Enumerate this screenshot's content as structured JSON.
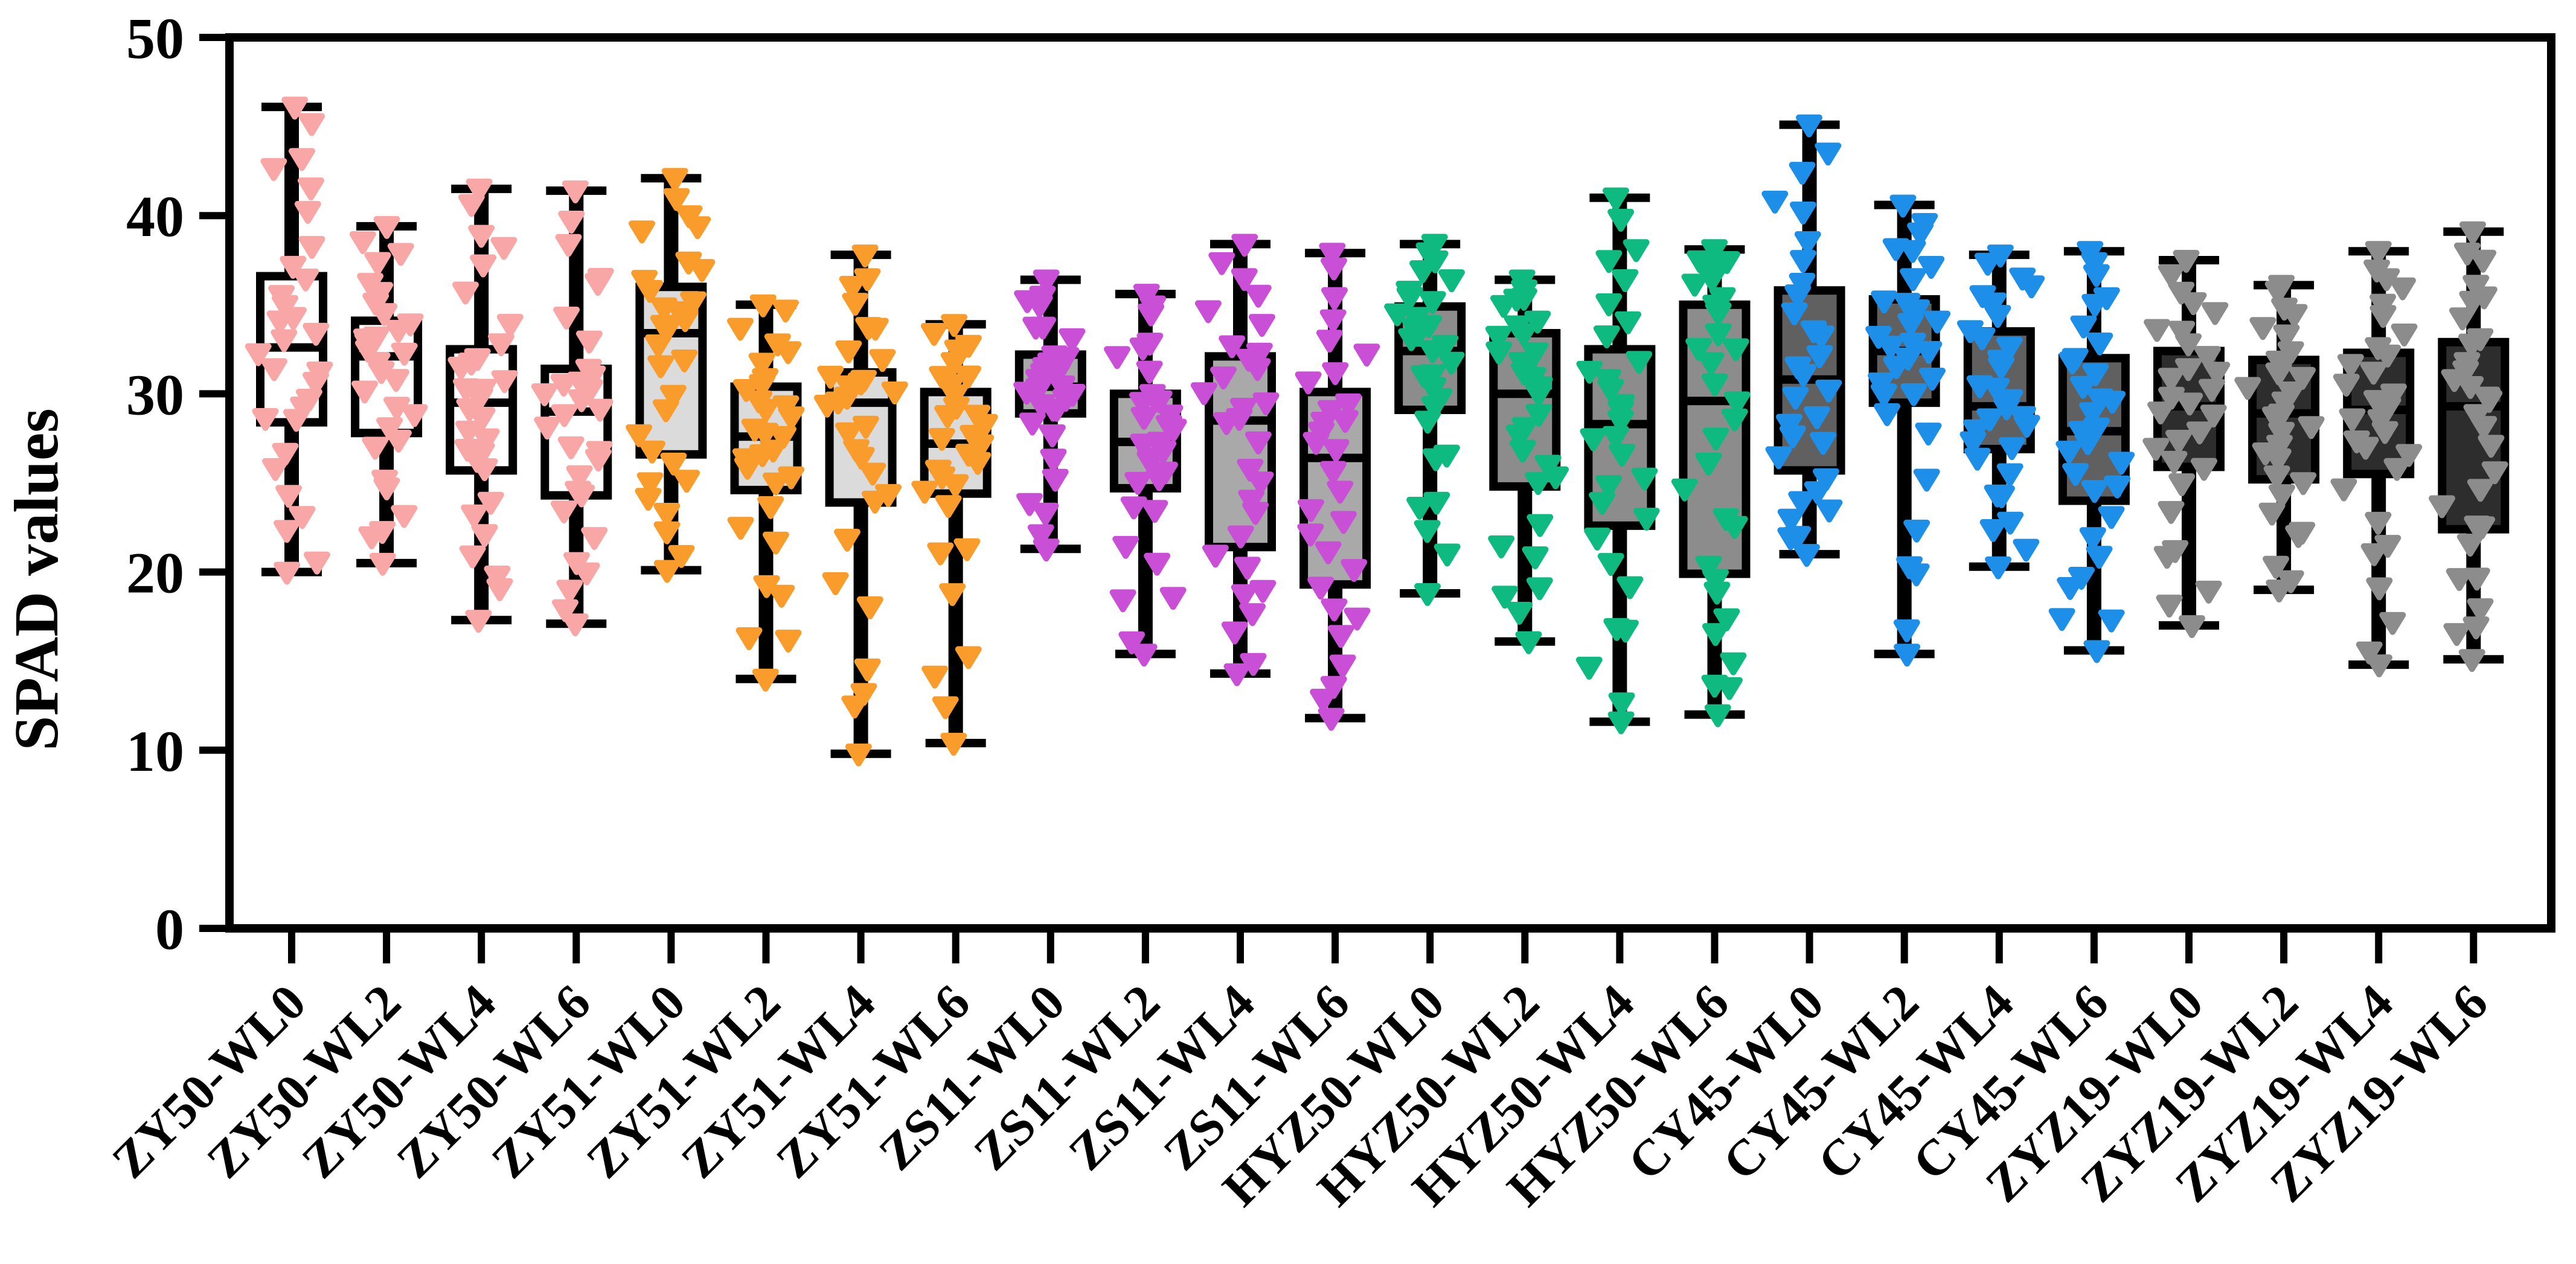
{
  "figure": {
    "background": "#FFFFFF",
    "frame_color": "#000000"
  },
  "chart_data": {
    "type": "box-scatter",
    "title": "",
    "xlabel": "",
    "ylabel": "SPAD values",
    "ylim": [
      0,
      50
    ],
    "yticks": [
      0,
      10,
      20,
      30,
      40,
      50
    ],
    "grid": false,
    "legend": "none",
    "marker_shape": "triangle-down",
    "n_per_box": 30,
    "box_border_color": "#000000",
    "whisker_color": "#000000",
    "x_tick_label_rotation_deg": -45,
    "groups": [
      {
        "name": "ZY50",
        "marker_color": "#F9A6A6",
        "box_fill": "#FFFFFF"
      },
      {
        "name": "ZY51",
        "marker_color": "#FA9C2B",
        "box_fill": "#DBDBDB"
      },
      {
        "name": "ZS11",
        "marker_color": "#C94FD6",
        "box_fill": "#A9A9A9"
      },
      {
        "name": "HYZ50",
        "marker_color": "#0FBA80",
        "box_fill": "#8C8C8C"
      },
      {
        "name": "CY45",
        "marker_color": "#1E8FE8",
        "box_fill": "#606060"
      },
      {
        "name": "ZYZ19",
        "marker_color": "#8C8C8C",
        "box_fill": "#2D2D2D"
      }
    ],
    "categories": [
      "ZY50-WL0",
      "ZY50-WL2",
      "ZY50-WL4",
      "ZY50-WL6",
      "ZY51-WL0",
      "ZY51-WL2",
      "ZY51-WL4",
      "ZY51-WL6",
      "ZS11-WL0",
      "ZS11-WL2",
      "ZS11-WL4",
      "ZS11-WL6",
      "HYZ50-WL0",
      "HYZ50-WL2",
      "HYZ50-WL4",
      "HYZ50-WL6",
      "CY45-WL0",
      "CY45-WL2",
      "CY45-WL4",
      "CY45-WL6",
      "ZYZ19-WL0",
      "ZYZ19-WL2",
      "ZYZ19-WL4",
      "ZYZ19-WL6"
    ],
    "series": [
      {
        "label": "ZY50-WL0",
        "group": "ZY50",
        "min": 20.0,
        "q1": 28.4,
        "median": 32.6,
        "q3": 36.6,
        "max": 46.1
      },
      {
        "label": "ZY50-WL2",
        "group": "ZY50",
        "min": 20.5,
        "q1": 27.8,
        "median": 32.1,
        "q3": 34.1,
        "max": 39.4
      },
      {
        "label": "ZY50-WL4",
        "group": "ZY50",
        "min": 17.3,
        "q1": 25.7,
        "median": 29.5,
        "q3": 32.5,
        "max": 41.5
      },
      {
        "label": "ZY50-WL6",
        "group": "ZY50",
        "min": 17.1,
        "q1": 24.3,
        "median": 29.0,
        "q3": 31.4,
        "max": 41.4
      },
      {
        "label": "ZY51-WL0",
        "group": "ZY51",
        "min": 20.1,
        "q1": 26.6,
        "median": 33.4,
        "q3": 36.0,
        "max": 42.1
      },
      {
        "label": "ZY51-WL2",
        "group": "ZY51",
        "min": 14.0,
        "q1": 24.6,
        "median": 27.6,
        "q3": 30.4,
        "max": 35.0
      },
      {
        "label": "ZY51-WL4",
        "group": "ZY51",
        "min": 9.8,
        "q1": 23.9,
        "median": 29.5,
        "q3": 31.2,
        "max": 37.8
      },
      {
        "label": "ZY51-WL6",
        "group": "ZY51",
        "min": 10.4,
        "q1": 24.4,
        "median": 27.2,
        "q3": 30.1,
        "max": 33.9
      },
      {
        "label": "ZS11-WL0",
        "group": "ZS11",
        "min": 21.3,
        "q1": 28.9,
        "median": 30.4,
        "q3": 32.2,
        "max": 36.4
      },
      {
        "label": "ZS11-WL2",
        "group": "ZS11",
        "min": 15.4,
        "q1": 24.7,
        "median": 27.3,
        "q3": 30.0,
        "max": 35.6
      },
      {
        "label": "ZS11-WL4",
        "group": "ZS11",
        "min": 14.3,
        "q1": 21.4,
        "median": 28.5,
        "q3": 32.1,
        "max": 38.4
      },
      {
        "label": "ZS11-WL6",
        "group": "ZS11",
        "min": 11.8,
        "q1": 19.3,
        "median": 26.4,
        "q3": 30.1,
        "max": 37.9
      },
      {
        "label": "HYZ50-WL0",
        "group": "HYZ50",
        "min": 18.8,
        "q1": 29.1,
        "median": 32.4,
        "q3": 34.9,
        "max": 38.4
      },
      {
        "label": "HYZ50-WL2",
        "group": "HYZ50",
        "min": 16.1,
        "q1": 24.8,
        "median": 30.0,
        "q3": 33.4,
        "max": 36.4
      },
      {
        "label": "HYZ50-WL4",
        "group": "HYZ50",
        "min": 11.6,
        "q1": 22.6,
        "median": 28.3,
        "q3": 32.5,
        "max": 41.0
      },
      {
        "label": "HYZ50-WL6",
        "group": "HYZ50",
        "min": 12.0,
        "q1": 19.9,
        "median": 29.6,
        "q3": 35.0,
        "max": 38.1
      },
      {
        "label": "CY45-WL0",
        "group": "CY45",
        "min": 21.0,
        "q1": 25.7,
        "median": 30.8,
        "q3": 35.8,
        "max": 45.1
      },
      {
        "label": "CY45-WL2",
        "group": "CY45",
        "min": 15.4,
        "q1": 29.5,
        "median": 32.4,
        "q3": 35.3,
        "max": 40.6
      },
      {
        "label": "CY45-WL4",
        "group": "CY45",
        "min": 20.3,
        "q1": 26.9,
        "median": 29.3,
        "q3": 33.5,
        "max": 37.8
      },
      {
        "label": "CY45-WL6",
        "group": "CY45",
        "min": 15.6,
        "q1": 24.0,
        "median": 27.9,
        "q3": 32.0,
        "max": 38.0
      },
      {
        "label": "ZYZ19-WL0",
        "group": "ZYZ19",
        "min": 17.0,
        "q1": 25.9,
        "median": 29.3,
        "q3": 32.4,
        "max": 37.5
      },
      {
        "label": "ZYZ19-WL2",
        "group": "ZYZ19",
        "min": 19.0,
        "q1": 25.2,
        "median": 28.9,
        "q3": 31.9,
        "max": 36.1
      },
      {
        "label": "ZYZ19-WL4",
        "group": "ZYZ19",
        "min": 14.8,
        "q1": 25.5,
        "median": 29.1,
        "q3": 32.3,
        "max": 38.0
      },
      {
        "label": "ZYZ19-WL6",
        "group": "ZYZ19",
        "min": 15.1,
        "q1": 22.4,
        "median": 29.3,
        "q3": 32.9,
        "max": 39.1
      }
    ]
  }
}
